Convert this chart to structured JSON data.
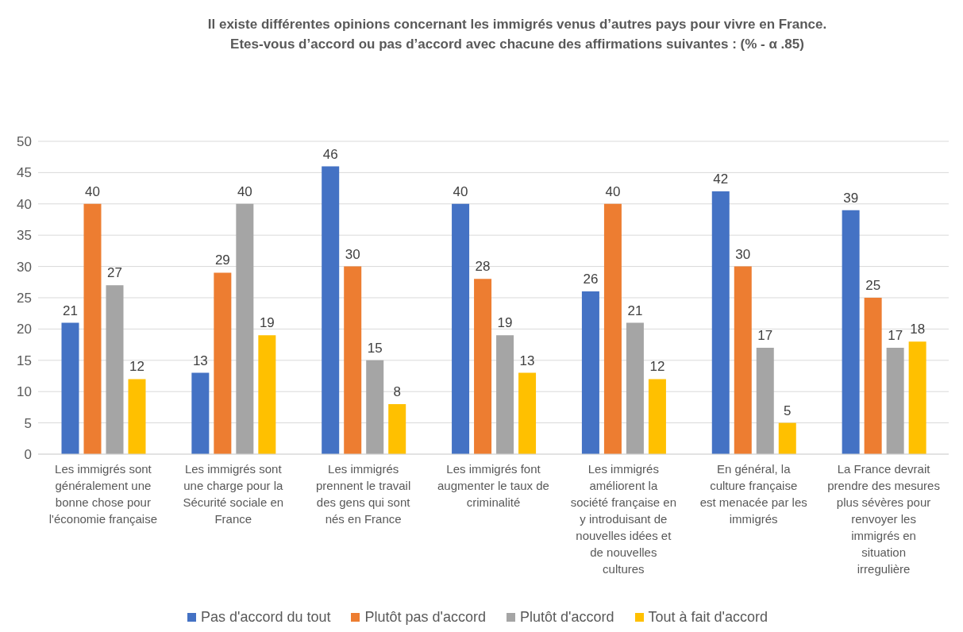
{
  "chart_data": {
    "type": "bar",
    "title": "Il existe différentes opinions concernant les immigrés venus d’autres pays pour vivre en France.\nEtes-vous d’accord ou pas d’accord avec chacune des affirmations suivantes : (% - α .85)",
    "categories": [
      "Les immigrés sont généralement une bonne chose pour l'économie française",
      "Les immigrés sont une charge pour la Sécurité sociale en France",
      "Les immigrés prennent le travail des gens qui sont nés en France",
      "Les immigrés font augmenter le taux de criminalité",
      "Les immigrés améliorent la société française en y introduisant de nouvelles idées et de nouvelles cultures",
      "En général, la culture française est menacée par les immigrés",
      "La France devrait prendre des mesures plus sévères pour renvoyer les immigrés en situation irregulière"
    ],
    "series": [
      {
        "name": "Pas d'accord du tout",
        "color": "#4472c4",
        "values": [
          21,
          13,
          46,
          40,
          26,
          42,
          39
        ]
      },
      {
        "name": "Plutôt pas d'accord",
        "color": "#ed7d31",
        "values": [
          40,
          29,
          30,
          28,
          40,
          30,
          25
        ]
      },
      {
        "name": "Plutôt d'accord",
        "color": "#a5a5a5",
        "values": [
          27,
          40,
          15,
          19,
          21,
          17,
          17
        ]
      },
      {
        "name": "Tout à fait d'accord",
        "color": "#ffc000",
        "values": [
          12,
          19,
          8,
          13,
          12,
          5,
          18
        ]
      }
    ],
    "ylim": [
      0,
      50
    ],
    "yticks": [
      0,
      5,
      10,
      15,
      20,
      25,
      30,
      35,
      40,
      45,
      50
    ],
    "grid": "y",
    "legend": "bottom",
    "data_labels": true
  }
}
